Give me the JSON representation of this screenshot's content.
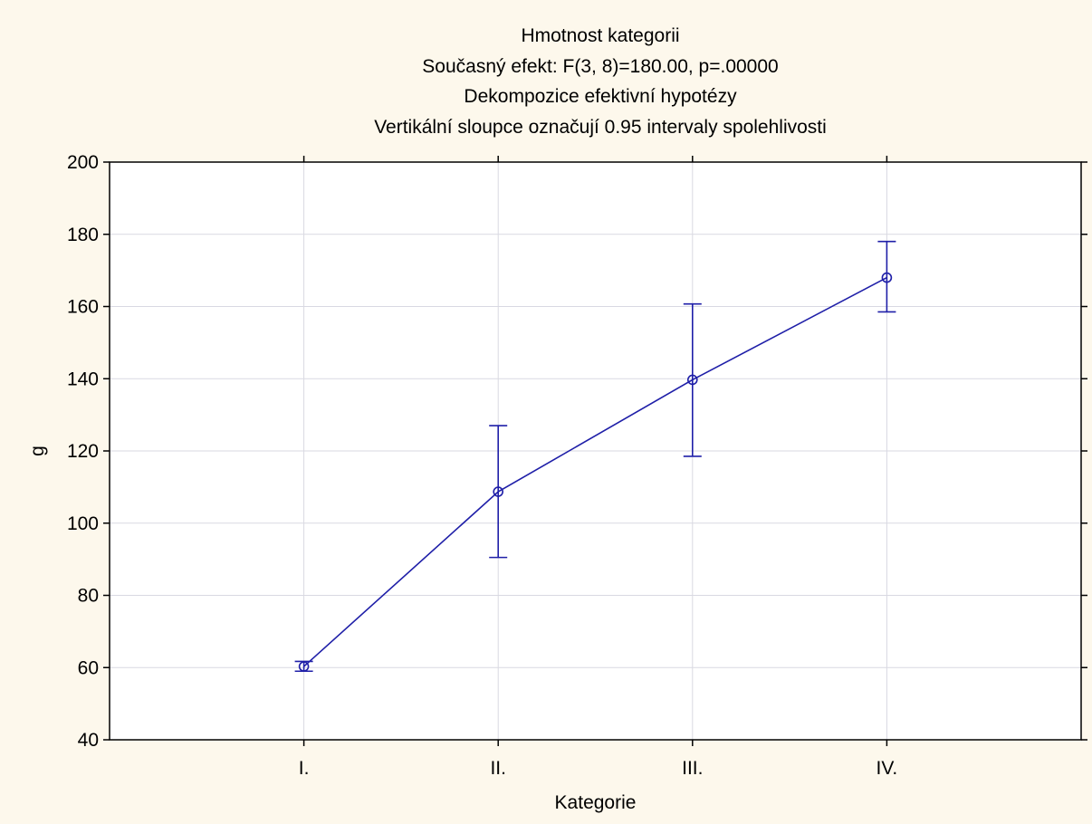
{
  "chart_data": {
    "type": "line",
    "title_lines": [
      "Hmotnost kategorii",
      "Současný efekt: F(3, 8)=180.00, p=.00000",
      "Dekompozice efektivní hypotézy",
      "Vertikální sloupce označují 0.95 intervaly spolehlivosti"
    ],
    "xlabel": "Kategorie",
    "ylabel": "g",
    "categories": [
      "I.",
      "II.",
      "III.",
      "IV."
    ],
    "ylim": [
      40,
      200
    ],
    "yticks": [
      "40",
      "60",
      "80",
      "100",
      "120",
      "140",
      "160",
      "180",
      "200"
    ],
    "grid": true,
    "series": [
      {
        "values": [
          60.3,
          108.7,
          139.7,
          168.0
        ],
        "ci_lower": [
          59.0,
          90.5,
          118.5,
          158.5
        ],
        "ci_upper": [
          61.7,
          127.0,
          160.7,
          178.0
        ]
      }
    ],
    "colors": {
      "series": "#1f1fa8",
      "grid": "#d9d9e2",
      "axis": "#000000",
      "background": "#fdf8ec",
      "plot_background": "#ffffff"
    }
  }
}
